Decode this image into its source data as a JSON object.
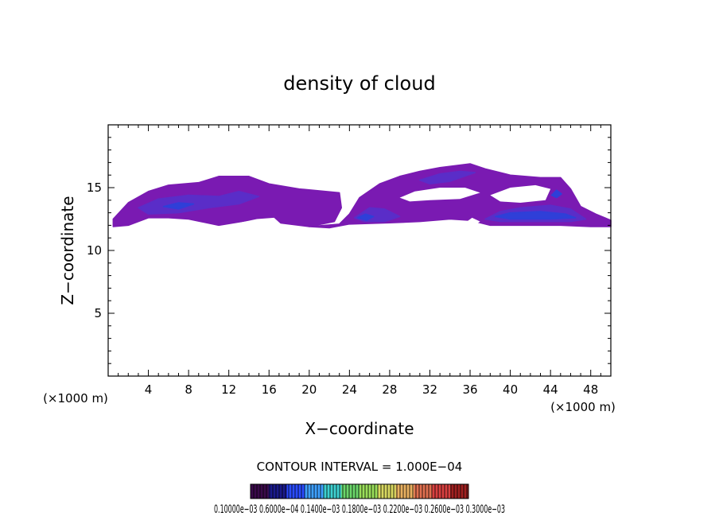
{
  "chart_data": {
    "type": "heatmap",
    "title": "density of cloud",
    "xlabel": "X−coordinate",
    "ylabel": "Z−coordinate",
    "x_unit_left": "(×1000 m)",
    "x_unit_right": "(×1000 m)",
    "xlim": [
      0,
      50
    ],
    "ylim": [
      0,
      20
    ],
    "x_ticks": [
      "4",
      "8",
      "12",
      "16",
      "20",
      "24",
      "28",
      "32",
      "36",
      "40",
      "44",
      "48"
    ],
    "x_tick_values": [
      4,
      8,
      12,
      16,
      20,
      24,
      28,
      32,
      36,
      40,
      44,
      48
    ],
    "y_ticks": [
      "5",
      "10",
      "15"
    ],
    "y_tick_values": [
      5,
      10,
      15
    ],
    "contour_interval_text": "CONTOUR INTERVAL = 1.000E−04",
    "colorbar_labels_text": "0.10000e−03 0.6000e−04 0.1400e−03 0.1800e−03 0.2200e−03 0.2600e−03 0.3000e−03",
    "colorbar_colors": [
      "#3a0a4a",
      "#1a1a8c",
      "#2a4cff",
      "#3fa0ff",
      "#3ed0d0",
      "#6bd66b",
      "#9ade5a",
      "#d8d860",
      "#e8b060",
      "#e07050",
      "#d84040",
      "#a02020"
    ],
    "cloud_colors": {
      "base": "#7a1ab2",
      "mid": "#5a2dc8",
      "core": "#2f3fd8"
    },
    "regions": [
      {
        "level": "base",
        "points": [
          [
            0.5,
            12.5
          ],
          [
            2,
            13.8
          ],
          [
            4,
            14.7
          ],
          [
            6,
            15.2
          ],
          [
            9,
            15.4
          ],
          [
            11,
            15.9
          ],
          [
            14,
            15.9
          ],
          [
            16,
            15.3
          ],
          [
            19,
            14.9
          ],
          [
            23,
            14.6
          ],
          [
            23.2,
            13.4
          ],
          [
            22.5,
            12.3
          ],
          [
            20,
            11.9
          ],
          [
            17,
            12.2
          ],
          [
            14,
            12.4
          ],
          [
            11,
            12.0
          ],
          [
            8,
            12.5
          ],
          [
            6,
            12.6
          ],
          [
            4,
            12.6
          ],
          [
            2,
            12.0
          ],
          [
            0.5,
            11.9
          ]
        ]
      },
      {
        "level": "base",
        "points": [
          [
            20,
            11.9
          ],
          [
            23,
            12.1
          ],
          [
            24,
            12.9
          ],
          [
            25,
            14.2
          ],
          [
            27,
            15.3
          ],
          [
            29,
            15.9
          ],
          [
            31,
            16.3
          ],
          [
            33,
            16.6
          ],
          [
            36,
            16.9
          ],
          [
            37.5,
            16.5
          ],
          [
            40,
            16.0
          ],
          [
            43,
            15.8
          ],
          [
            45,
            15.8
          ],
          [
            46,
            14.9
          ],
          [
            47,
            13.5
          ],
          [
            48.5,
            12.9
          ],
          [
            50,
            12.4
          ],
          [
            50,
            11.9
          ],
          [
            48,
            11.9
          ],
          [
            45,
            12.0
          ],
          [
            38,
            12.0
          ],
          [
            36,
            12.4
          ],
          [
            34,
            12.5
          ],
          [
            31,
            12.3
          ],
          [
            28,
            12.2
          ],
          [
            24,
            12.1
          ],
          [
            22,
            11.8
          ]
        ]
      },
      {
        "level": "mid",
        "points": [
          [
            3,
            13.4
          ],
          [
            5,
            14.1
          ],
          [
            8,
            14.4
          ],
          [
            11,
            14.3
          ],
          [
            13,
            14.7
          ],
          [
            15,
            14.3
          ],
          [
            13,
            13.7
          ],
          [
            10,
            13.4
          ],
          [
            7,
            13.0
          ],
          [
            4,
            12.9
          ]
        ]
      },
      {
        "level": "mid",
        "points": [
          [
            24.5,
            12.6
          ],
          [
            26,
            13.4
          ],
          [
            27.5,
            13.3
          ],
          [
            29,
            12.7
          ],
          [
            27.5,
            12.3
          ],
          [
            25.5,
            12.3
          ]
        ]
      },
      {
        "level": "mid",
        "points": [
          [
            37.5,
            12.5
          ],
          [
            39,
            13.1
          ],
          [
            41,
            13.4
          ],
          [
            44,
            13.6
          ],
          [
            46,
            13.3
          ],
          [
            47.5,
            12.5
          ],
          [
            46,
            12.3
          ],
          [
            42,
            12.3
          ],
          [
            39,
            12.3
          ]
        ]
      },
      {
        "level": "mid",
        "points": [
          [
            31,
            15.6
          ],
          [
            33,
            16.1
          ],
          [
            35,
            16.3
          ],
          [
            36.5,
            16.2
          ],
          [
            34,
            15.5
          ],
          [
            32,
            15.3
          ]
        ]
      },
      {
        "level": "core",
        "points": [
          [
            24.8,
            12.6
          ],
          [
            25.6,
            12.9
          ],
          [
            26.4,
            12.7
          ],
          [
            25.7,
            12.4
          ]
        ]
      },
      {
        "level": "core",
        "points": [
          [
            38.5,
            12.7
          ],
          [
            40,
            13.0
          ],
          [
            43,
            13.1
          ],
          [
            45.5,
            12.9
          ],
          [
            46.5,
            12.6
          ],
          [
            44,
            12.5
          ],
          [
            40,
            12.5
          ]
        ]
      },
      {
        "level": "core",
        "points": [
          [
            44.1,
            14.4
          ],
          [
            44.6,
            14.8
          ],
          [
            45.1,
            14.5
          ],
          [
            44.6,
            14.2
          ]
        ]
      },
      {
        "level": "core",
        "points": [
          [
            5.5,
            13.5
          ],
          [
            7,
            13.8
          ],
          [
            8.5,
            13.7
          ],
          [
            7,
            13.3
          ]
        ]
      }
    ],
    "holes": [
      {
        "points": [
          [
            29,
            14.2
          ],
          [
            30.5,
            14.7
          ],
          [
            33,
            15.0
          ],
          [
            35.5,
            15.0
          ],
          [
            37,
            14.6
          ],
          [
            35,
            14.1
          ],
          [
            32,
            14.0
          ],
          [
            30,
            13.9
          ]
        ]
      },
      {
        "points": [
          [
            38,
            14.4
          ],
          [
            40,
            15.0
          ],
          [
            42.5,
            15.2
          ],
          [
            44,
            14.9
          ],
          [
            43.5,
            14.0
          ],
          [
            41,
            13.8
          ],
          [
            39,
            13.9
          ]
        ]
      },
      {
        "points": [
          [
            35.5,
            12.2
          ],
          [
            36.2,
            12.6
          ],
          [
            37,
            12.3
          ],
          [
            36.2,
            11.9
          ]
        ]
      },
      {
        "points": [
          [
            13,
            12.2
          ],
          [
            14.8,
            12.5
          ],
          [
            16.5,
            12.6
          ],
          [
            17.2,
            12.1
          ],
          [
            15,
            11.9
          ]
        ]
      }
    ]
  }
}
